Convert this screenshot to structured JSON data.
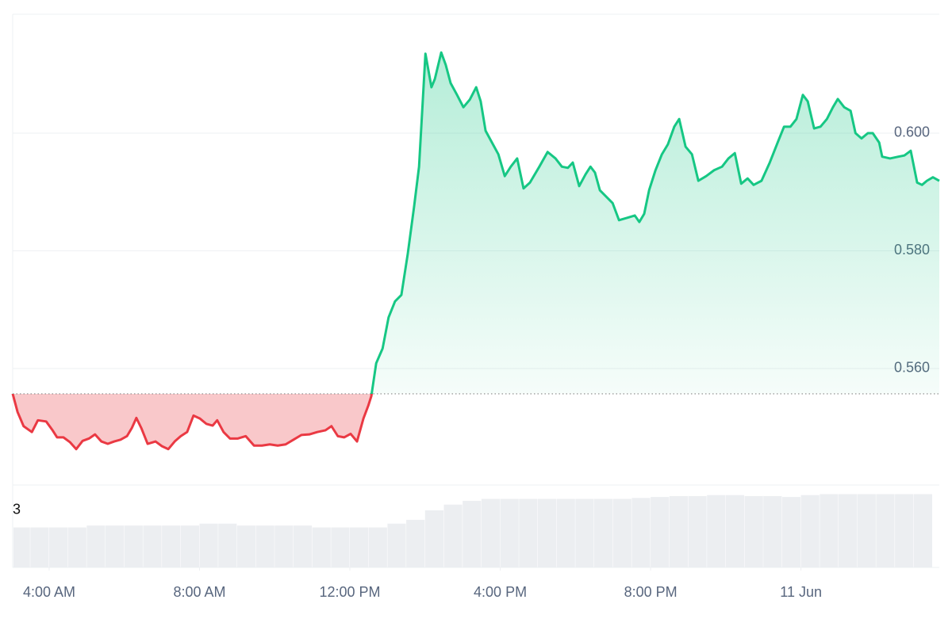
{
  "chart_data": [
    {
      "type": "line",
      "colors": {
        "up": "#16c784",
        "down": "#ea3943"
      },
      "x": [
        3.03,
        3.16,
        3.32,
        3.54,
        3.7,
        3.92,
        4.08,
        4.21,
        4.38,
        4.55,
        4.72,
        4.89,
        5.06,
        5.22,
        5.39,
        5.56,
        5.73,
        5.9,
        6.07,
        6.2,
        6.32,
        6.45,
        6.62,
        6.83,
        7.0,
        7.17,
        7.34,
        7.5,
        7.67,
        7.84,
        8.01,
        8.18,
        8.35,
        8.47,
        8.64,
        8.81,
        9.02,
        9.23,
        9.45,
        9.66,
        9.87,
        10.08,
        10.29,
        10.5,
        10.71,
        10.92,
        11.13,
        11.35,
        11.51,
        11.68,
        11.85,
        12.02,
        12.19,
        12.36,
        12.49,
        12.57,
        12.7,
        12.87,
        13.03,
        13.2,
        13.37,
        13.54,
        13.71,
        13.84,
        14.01,
        14.17,
        14.26,
        14.43,
        14.55,
        14.68,
        14.85,
        15.02,
        15.19,
        15.36,
        15.48,
        15.61,
        15.78,
        15.95,
        16.12,
        16.28,
        16.45,
        16.62,
        16.79,
        17.04,
        17.26,
        17.47,
        17.64,
        17.8,
        17.93,
        18.1,
        18.27,
        18.4,
        18.52,
        18.65,
        18.82,
        18.99,
        19.16,
        19.37,
        19.58,
        19.7,
        19.83,
        19.96,
        20.13,
        20.3,
        20.46,
        20.63,
        20.76,
        20.93,
        21.1,
        21.27,
        21.48,
        21.69,
        21.9,
        22.07,
        22.24,
        22.41,
        22.58,
        22.74,
        22.95,
        23.17,
        23.38,
        23.55,
        23.72,
        23.88,
        24.05,
        24.18,
        24.35,
        24.52,
        24.69,
        24.85,
        24.98,
        25.15,
        25.32,
        25.45,
        25.61,
        25.78,
        25.91,
        26.08,
        26.16,
        26.37,
        26.59,
        26.75,
        26.92,
        27.09,
        27.22,
        27.35,
        27.51,
        27.68
      ],
      "values": [
        0.5557,
        0.5526,
        0.5502,
        0.5492,
        0.5512,
        0.551,
        0.5496,
        0.5483,
        0.5483,
        0.5475,
        0.5463,
        0.5477,
        0.5481,
        0.5488,
        0.5476,
        0.5472,
        0.5476,
        0.5479,
        0.5485,
        0.5499,
        0.5516,
        0.5499,
        0.5472,
        0.5476,
        0.5468,
        0.5463,
        0.5476,
        0.5485,
        0.5492,
        0.552,
        0.5515,
        0.5506,
        0.5503,
        0.5512,
        0.5492,
        0.5481,
        0.5481,
        0.5485,
        0.5469,
        0.5469,
        0.5471,
        0.5469,
        0.5471,
        0.5479,
        0.5487,
        0.5488,
        0.5492,
        0.5495,
        0.5502,
        0.5485,
        0.5483,
        0.5489,
        0.5476,
        0.5515,
        0.5537,
        0.5553,
        0.5609,
        0.5634,
        0.5687,
        0.5714,
        0.5725,
        0.5795,
        0.5876,
        0.5943,
        0.6135,
        0.6078,
        0.6092,
        0.6137,
        0.6116,
        0.6085,
        0.6065,
        0.6044,
        0.6057,
        0.6078,
        0.6054,
        0.6004,
        0.5984,
        0.5964,
        0.5927,
        0.5943,
        0.5957,
        0.5906,
        0.5916,
        0.5943,
        0.5968,
        0.5957,
        0.5943,
        0.5941,
        0.595,
        0.591,
        0.593,
        0.5943,
        0.5933,
        0.5903,
        0.5892,
        0.5881,
        0.5852,
        0.5856,
        0.586,
        0.5849,
        0.5863,
        0.5903,
        0.5937,
        0.5964,
        0.5981,
        0.6011,
        0.6024,
        0.5977,
        0.5964,
        0.5919,
        0.5927,
        0.5937,
        0.5943,
        0.5957,
        0.5966,
        0.5914,
        0.5923,
        0.5912,
        0.5919,
        0.595,
        0.5984,
        0.6011,
        0.6011,
        0.6024,
        0.6065,
        0.6054,
        0.6008,
        0.6011,
        0.6024,
        0.6044,
        0.6058,
        0.6044,
        0.6038,
        0.6,
        0.5991,
        0.6,
        0.6,
        0.5984,
        0.596,
        0.5957,
        0.596,
        0.5962,
        0.597,
        0.5916,
        0.5912,
        0.5919,
        0.5925,
        0.5919
      ],
      "xlim": [
        3.03,
        27.68
      ],
      "xticks": [
        {
          "value": 4,
          "label": "4:00 AM"
        },
        {
          "value": 8,
          "label": "8:00 AM"
        },
        {
          "value": 12,
          "label": "12:00 PM"
        },
        {
          "value": 16,
          "label": "4:00 PM"
        },
        {
          "value": 20,
          "label": "8:00 PM"
        },
        {
          "value": 24,
          "label": "11 Jun"
        }
      ],
      "ylim": [
        0.5402,
        0.6202
      ],
      "yticks": [
        {
          "value": 0.56,
          "label": "0.560"
        },
        {
          "value": 0.58,
          "label": "0.580"
        },
        {
          "value": 0.6,
          "label": "0.600"
        }
      ],
      "grid": true
    },
    {
      "type": "bar",
      "color": "#eceef1",
      "x": [
        3.25,
        3.75,
        4.25,
        4.75,
        5.25,
        5.75,
        6.25,
        6.75,
        7.25,
        7.75,
        8.25,
        8.75,
        9.25,
        9.75,
        10.25,
        10.75,
        11.25,
        11.75,
        12.25,
        12.75,
        13.25,
        13.75,
        14.25,
        14.75,
        15.25,
        15.75,
        16.25,
        16.75,
        17.25,
        17.75,
        18.25,
        18.75,
        19.25,
        19.75,
        20.25,
        20.75,
        21.25,
        21.75,
        22.25,
        22.75,
        23.25,
        23.75,
        24.25,
        24.75,
        25.25,
        25.75,
        26.25,
        26.75,
        27.25
      ],
      "values": [
        2.1,
        2.1,
        2.1,
        2.1,
        2.2,
        2.2,
        2.2,
        2.2,
        2.2,
        2.2,
        2.3,
        2.3,
        2.2,
        2.2,
        2.2,
        2.2,
        2.1,
        2.1,
        2.1,
        2.1,
        2.3,
        2.5,
        3.0,
        3.3,
        3.5,
        3.6,
        3.6,
        3.6,
        3.6,
        3.6,
        3.6,
        3.6,
        3.6,
        3.65,
        3.7,
        3.75,
        3.75,
        3.8,
        3.8,
        3.75,
        3.75,
        3.7,
        3.8,
        3.85,
        3.85,
        3.85,
        3.85,
        3.85,
        3.85
      ],
      "xlim": [
        3.03,
        27.68
      ],
      "ylim": [
        0,
        4.33
      ],
      "yticks": [
        3
      ]
    }
  ]
}
